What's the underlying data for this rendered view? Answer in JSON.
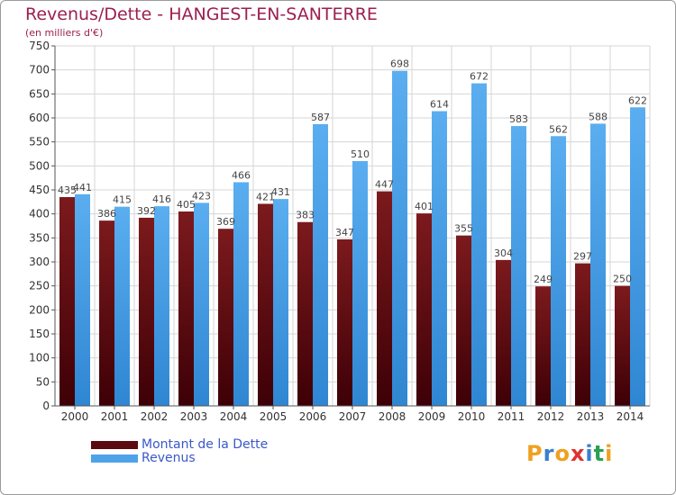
{
  "title": "Revenus/Dette - HANGEST-EN-SANTERRE",
  "subtitle": "(en milliers d'€)",
  "colors": {
    "dette_top": "#7c1a1d",
    "dette_bottom": "#3d0006",
    "revenus_top": "#5aaef0",
    "revenus_bottom": "#2f86d2",
    "title": "#9c1f4f",
    "legend_text": "#3a58c8"
  },
  "chart_data": {
    "type": "bar",
    "categories": [
      "2000",
      "2001",
      "2002",
      "2003",
      "2004",
      "2005",
      "2006",
      "2007",
      "2008",
      "2009",
      "2010",
      "2011",
      "2012",
      "2013",
      "2014"
    ],
    "series": [
      {
        "name": "Montant de la Dette",
        "values": [
          435,
          386,
          392,
          405,
          369,
          421,
          383,
          347,
          447,
          401,
          355,
          304,
          249,
          297,
          250
        ]
      },
      {
        "name": "Revenus",
        "values": [
          441,
          415,
          416,
          423,
          466,
          431,
          587,
          510,
          698,
          614,
          672,
          583,
          562,
          588,
          622
        ]
      }
    ],
    "yticks": [
      0,
      50,
      100,
      150,
      200,
      250,
      300,
      350,
      400,
      450,
      500,
      550,
      600,
      650,
      700,
      750
    ],
    "ylim": [
      0,
      750
    ],
    "grid": true
  },
  "legend": {
    "items": [
      {
        "label": "Montant de la Dette",
        "color": "#5a0a10"
      },
      {
        "label": "Revenus",
        "color": "#4ea3e8"
      }
    ]
  },
  "logo": {
    "letters": [
      "P",
      "r",
      "o",
      "x",
      "i",
      "t",
      "i"
    ],
    "colors": [
      "#f0a020",
      "#3a7fd0",
      "#f0a020",
      "#e03030",
      "#3a7fd0",
      "#2aa050",
      "#f0a020"
    ]
  }
}
